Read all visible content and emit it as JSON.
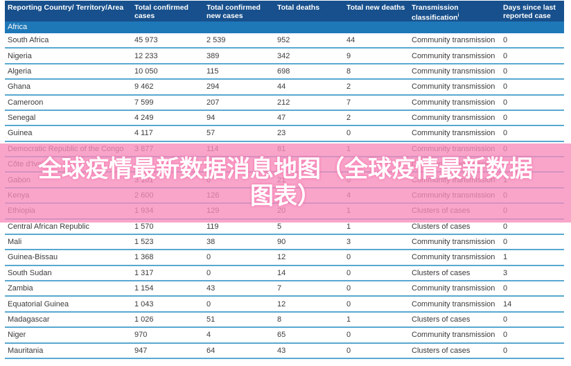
{
  "table": {
    "region_label": "Africa",
    "columns": [
      {
        "label": "Reporting Country/ Territory/Area"
      },
      {
        "label": "Total confirmed cases"
      },
      {
        "label": "Total confirmed new cases"
      },
      {
        "label": "Total deaths"
      },
      {
        "label": "Total new deaths"
      },
      {
        "label": "Transmission classification",
        "sup": "i"
      },
      {
        "label": "Days since last reported case"
      }
    ],
    "rows": [
      {
        "name": "South Africa",
        "confirmed": "45 973",
        "new_cases": "2 539",
        "deaths": "952",
        "new_deaths": "44",
        "classification": "Community transmission",
        "days": "0"
      },
      {
        "name": "Nigeria",
        "confirmed": "12 233",
        "new_cases": "389",
        "deaths": "342",
        "new_deaths": "9",
        "classification": "Community transmission",
        "days": "0"
      },
      {
        "name": "Algeria",
        "confirmed": "10 050",
        "new_cases": "115",
        "deaths": "698",
        "new_deaths": "8",
        "classification": "Community transmission",
        "days": "0"
      },
      {
        "name": "Ghana",
        "confirmed": "9 462",
        "new_cases": "294",
        "deaths": "44",
        "new_deaths": "2",
        "classification": "Community transmission",
        "days": "0"
      },
      {
        "name": "Cameroon",
        "confirmed": "7 599",
        "new_cases": "207",
        "deaths": "212",
        "new_deaths": "7",
        "classification": "Community transmission",
        "days": "0"
      },
      {
        "name": "Senegal",
        "confirmed": "4 249",
        "new_cases": "94",
        "deaths": "47",
        "new_deaths": "2",
        "classification": "Community transmission",
        "days": "0"
      },
      {
        "name": "Guinea",
        "confirmed": "4 117",
        "new_cases": "57",
        "deaths": "23",
        "new_deaths": "0",
        "classification": "Community transmission",
        "days": "0"
      },
      {
        "name": "Democratic Republic of the Congo",
        "confirmed": "3 877",
        "new_cases": "114",
        "deaths": "81",
        "new_deaths": "1",
        "classification": "Community transmission",
        "days": "0"
      },
      {
        "name": "Côte d'Ivoire",
        "confirmed": "",
        "new_cases": "",
        "deaths": "",
        "new_deaths": "",
        "classification": "Community transmission",
        "days": "0"
      },
      {
        "name": "Gabon",
        "confirmed": "3 101",
        "new_cases": "0",
        "deaths": "21",
        "new_deaths": "0",
        "classification": "Community transmission",
        "days": "1"
      },
      {
        "name": "Kenya",
        "confirmed": "2 600",
        "new_cases": "126",
        "deaths": "83",
        "new_deaths": "4",
        "classification": "Community transmission",
        "days": "0"
      },
      {
        "name": "Ethiopia",
        "confirmed": "1 934",
        "new_cases": "129",
        "deaths": "20",
        "new_deaths": "1",
        "classification": "Clusters of cases",
        "days": "0"
      },
      {
        "name": "Central African Republic",
        "confirmed": "1 570",
        "new_cases": "119",
        "deaths": "5",
        "new_deaths": "1",
        "classification": "Clusters of cases",
        "days": "0"
      },
      {
        "name": "Mali",
        "confirmed": "1 523",
        "new_cases": "38",
        "deaths": "90",
        "new_deaths": "3",
        "classification": "Community transmission",
        "days": "0"
      },
      {
        "name": "Guinea-Bissau",
        "confirmed": "1 368",
        "new_cases": "0",
        "deaths": "12",
        "new_deaths": "0",
        "classification": "Community transmission",
        "days": "1"
      },
      {
        "name": "South Sudan",
        "confirmed": "1 317",
        "new_cases": "0",
        "deaths": "14",
        "new_deaths": "0",
        "classification": "Clusters of cases",
        "days": "3"
      },
      {
        "name": "Zambia",
        "confirmed": "1 154",
        "new_cases": "43",
        "deaths": "7",
        "new_deaths": "0",
        "classification": "Community transmission",
        "days": "0"
      },
      {
        "name": "Equatorial Guinea",
        "confirmed": "1 043",
        "new_cases": "0",
        "deaths": "12",
        "new_deaths": "0",
        "classification": "Community transmission",
        "days": "14"
      },
      {
        "name": "Madagascar",
        "confirmed": "1 026",
        "new_cases": "51",
        "deaths": "8",
        "new_deaths": "1",
        "classification": "Clusters of cases",
        "days": "0"
      },
      {
        "name": "Niger",
        "confirmed": "970",
        "new_cases": "4",
        "deaths": "65",
        "new_deaths": "0",
        "classification": "Community transmission",
        "days": "0"
      },
      {
        "name": "Mauritania",
        "confirmed": "947",
        "new_cases": "64",
        "deaths": "43",
        "new_deaths": "0",
        "classification": "Clusters of cases",
        "days": "0"
      }
    ]
  },
  "overlay": {
    "title_line1": "全球疫情最新数据消息地图（全球疫情最新数据",
    "title_line2": "图表）",
    "background_color": "#f78cbb",
    "text_color": "#ffffff"
  },
  "colors": {
    "header_bg": "#17508c",
    "region_bg": "#1e78b8",
    "row_separator": "#58a8d0",
    "row_text": "#3a3a3a"
  }
}
